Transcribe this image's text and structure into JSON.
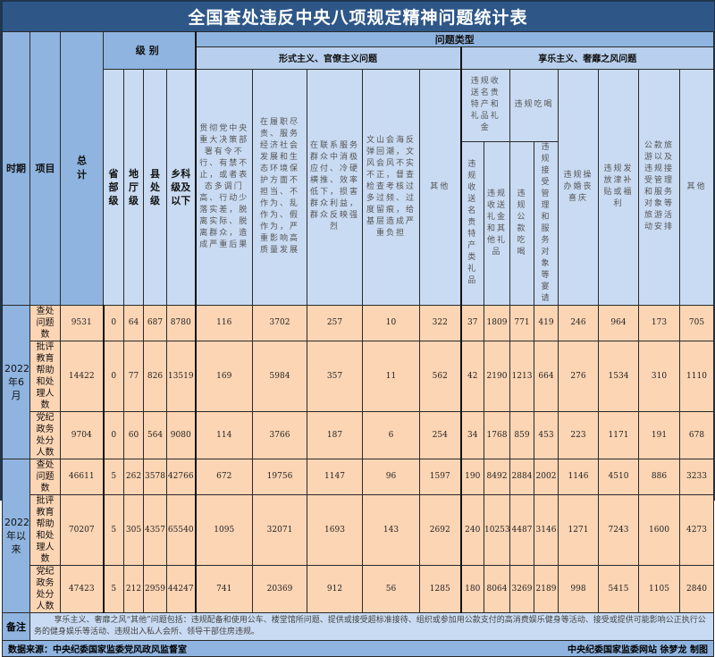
{
  "title": "全国查处违反中央八项规定精神问题统计表",
  "headers": {
    "period": "时期",
    "item": "项目",
    "total": "总计",
    "level": "级别",
    "problem_type": "问题类型",
    "levels": [
      "省部级",
      "地厅级",
      "县处级",
      "乡科级及以下"
    ],
    "formalism": "形式主义、官僚主义问题",
    "hedonism": "享乐主义、奢靡之风问题",
    "formalism_cols": [
      "贯彻党中央重大决策部署有令不行、有禁不止，或者表态多调门高、行动少落实差，脱离实际、脱离群众，造成严重后果",
      "在履职尽责、服务经济社会发展和生态环境保护方面不担当、不作为、乱作为、假作为，严重影响高质量发展",
      "在联系服务群众中消极应付、冷硬横推、效率低下，损害群众利益，群众反映强烈",
      "文山会海反弹回潮，文风会风不实不正，督查检查考核过多过频、过度留痕，给基层造成严重负担",
      "其他"
    ],
    "gift_group": "违规收送名贵特产和礼品礼金",
    "gift_sub": [
      "违规收送名贵特产类礼品",
      "违规收送礼金和其他礼品"
    ],
    "dining_group": "违规吃喝",
    "dining_sub": [
      "违规公款吃喝",
      "违规接受管理和服务对象等宴请"
    ],
    "hedonism_cols": [
      "违规操办婚丧喜庆",
      "违规发放津补贴或福利",
      "公款旅游以及违规接受管理和服务对象等旅游活动安排",
      "其他"
    ]
  },
  "groups": [
    {
      "period": "2022年6月",
      "rows": [
        {
          "item": "查处问题数",
          "values": [
            9531,
            0,
            64,
            687,
            8780,
            116,
            3702,
            257,
            10,
            322,
            37,
            1809,
            771,
            419,
            246,
            964,
            173,
            705
          ]
        },
        {
          "item": "批评教育帮助和处理人数",
          "values": [
            14422,
            0,
            77,
            826,
            13519,
            169,
            5984,
            357,
            11,
            562,
            42,
            2190,
            1213,
            664,
            276,
            1534,
            310,
            1110
          ]
        },
        {
          "item": "党纪政务处分人数",
          "values": [
            9704,
            0,
            60,
            564,
            9080,
            114,
            3766,
            187,
            6,
            254,
            34,
            1768,
            859,
            453,
            223,
            1171,
            191,
            678
          ]
        }
      ]
    },
    {
      "period": "2022年以来",
      "rows": [
        {
          "item": "查处问题数",
          "values": [
            46611,
            5,
            262,
            3578,
            42766,
            672,
            19756,
            1147,
            96,
            1597,
            190,
            8492,
            2884,
            2002,
            1146,
            4510,
            886,
            3233
          ]
        },
        {
          "item": "批评教育帮助和处理人数",
          "values": [
            70207,
            5,
            305,
            4357,
            65540,
            1095,
            32071,
            1693,
            143,
            2692,
            240,
            10253,
            4487,
            3146,
            1271,
            7243,
            1600,
            4273
          ]
        },
        {
          "item": "党纪政务处分人数",
          "values": [
            47423,
            5,
            212,
            2959,
            44247,
            741,
            20369,
            912,
            56,
            1285,
            180,
            8064,
            3269,
            2189,
            998,
            5415,
            1105,
            2840
          ]
        }
      ]
    }
  ],
  "note_label": "备注",
  "note": "享乐主义、奢靡之风“其他”问题包括：违规配备和使用公车、楼堂馆所问题、提供或接受超标准接待、组织或参加用公款支付的高消费娱乐健身等活动、接受或提供可能影响公正执行公务的健身娱乐等活动、违规出入私人会所、领导干部住房违规。",
  "source": "数据来源：中央纪委国家监委党风政风监督室",
  "credit": "中央纪委国家监委网站 徐梦龙 制图",
  "colors": {
    "title_bg": "#2e5788",
    "header_bg": "#8fb4e0",
    "subheader_bg": "#c9dbf2",
    "data_bg": "#fcd5b4"
  }
}
